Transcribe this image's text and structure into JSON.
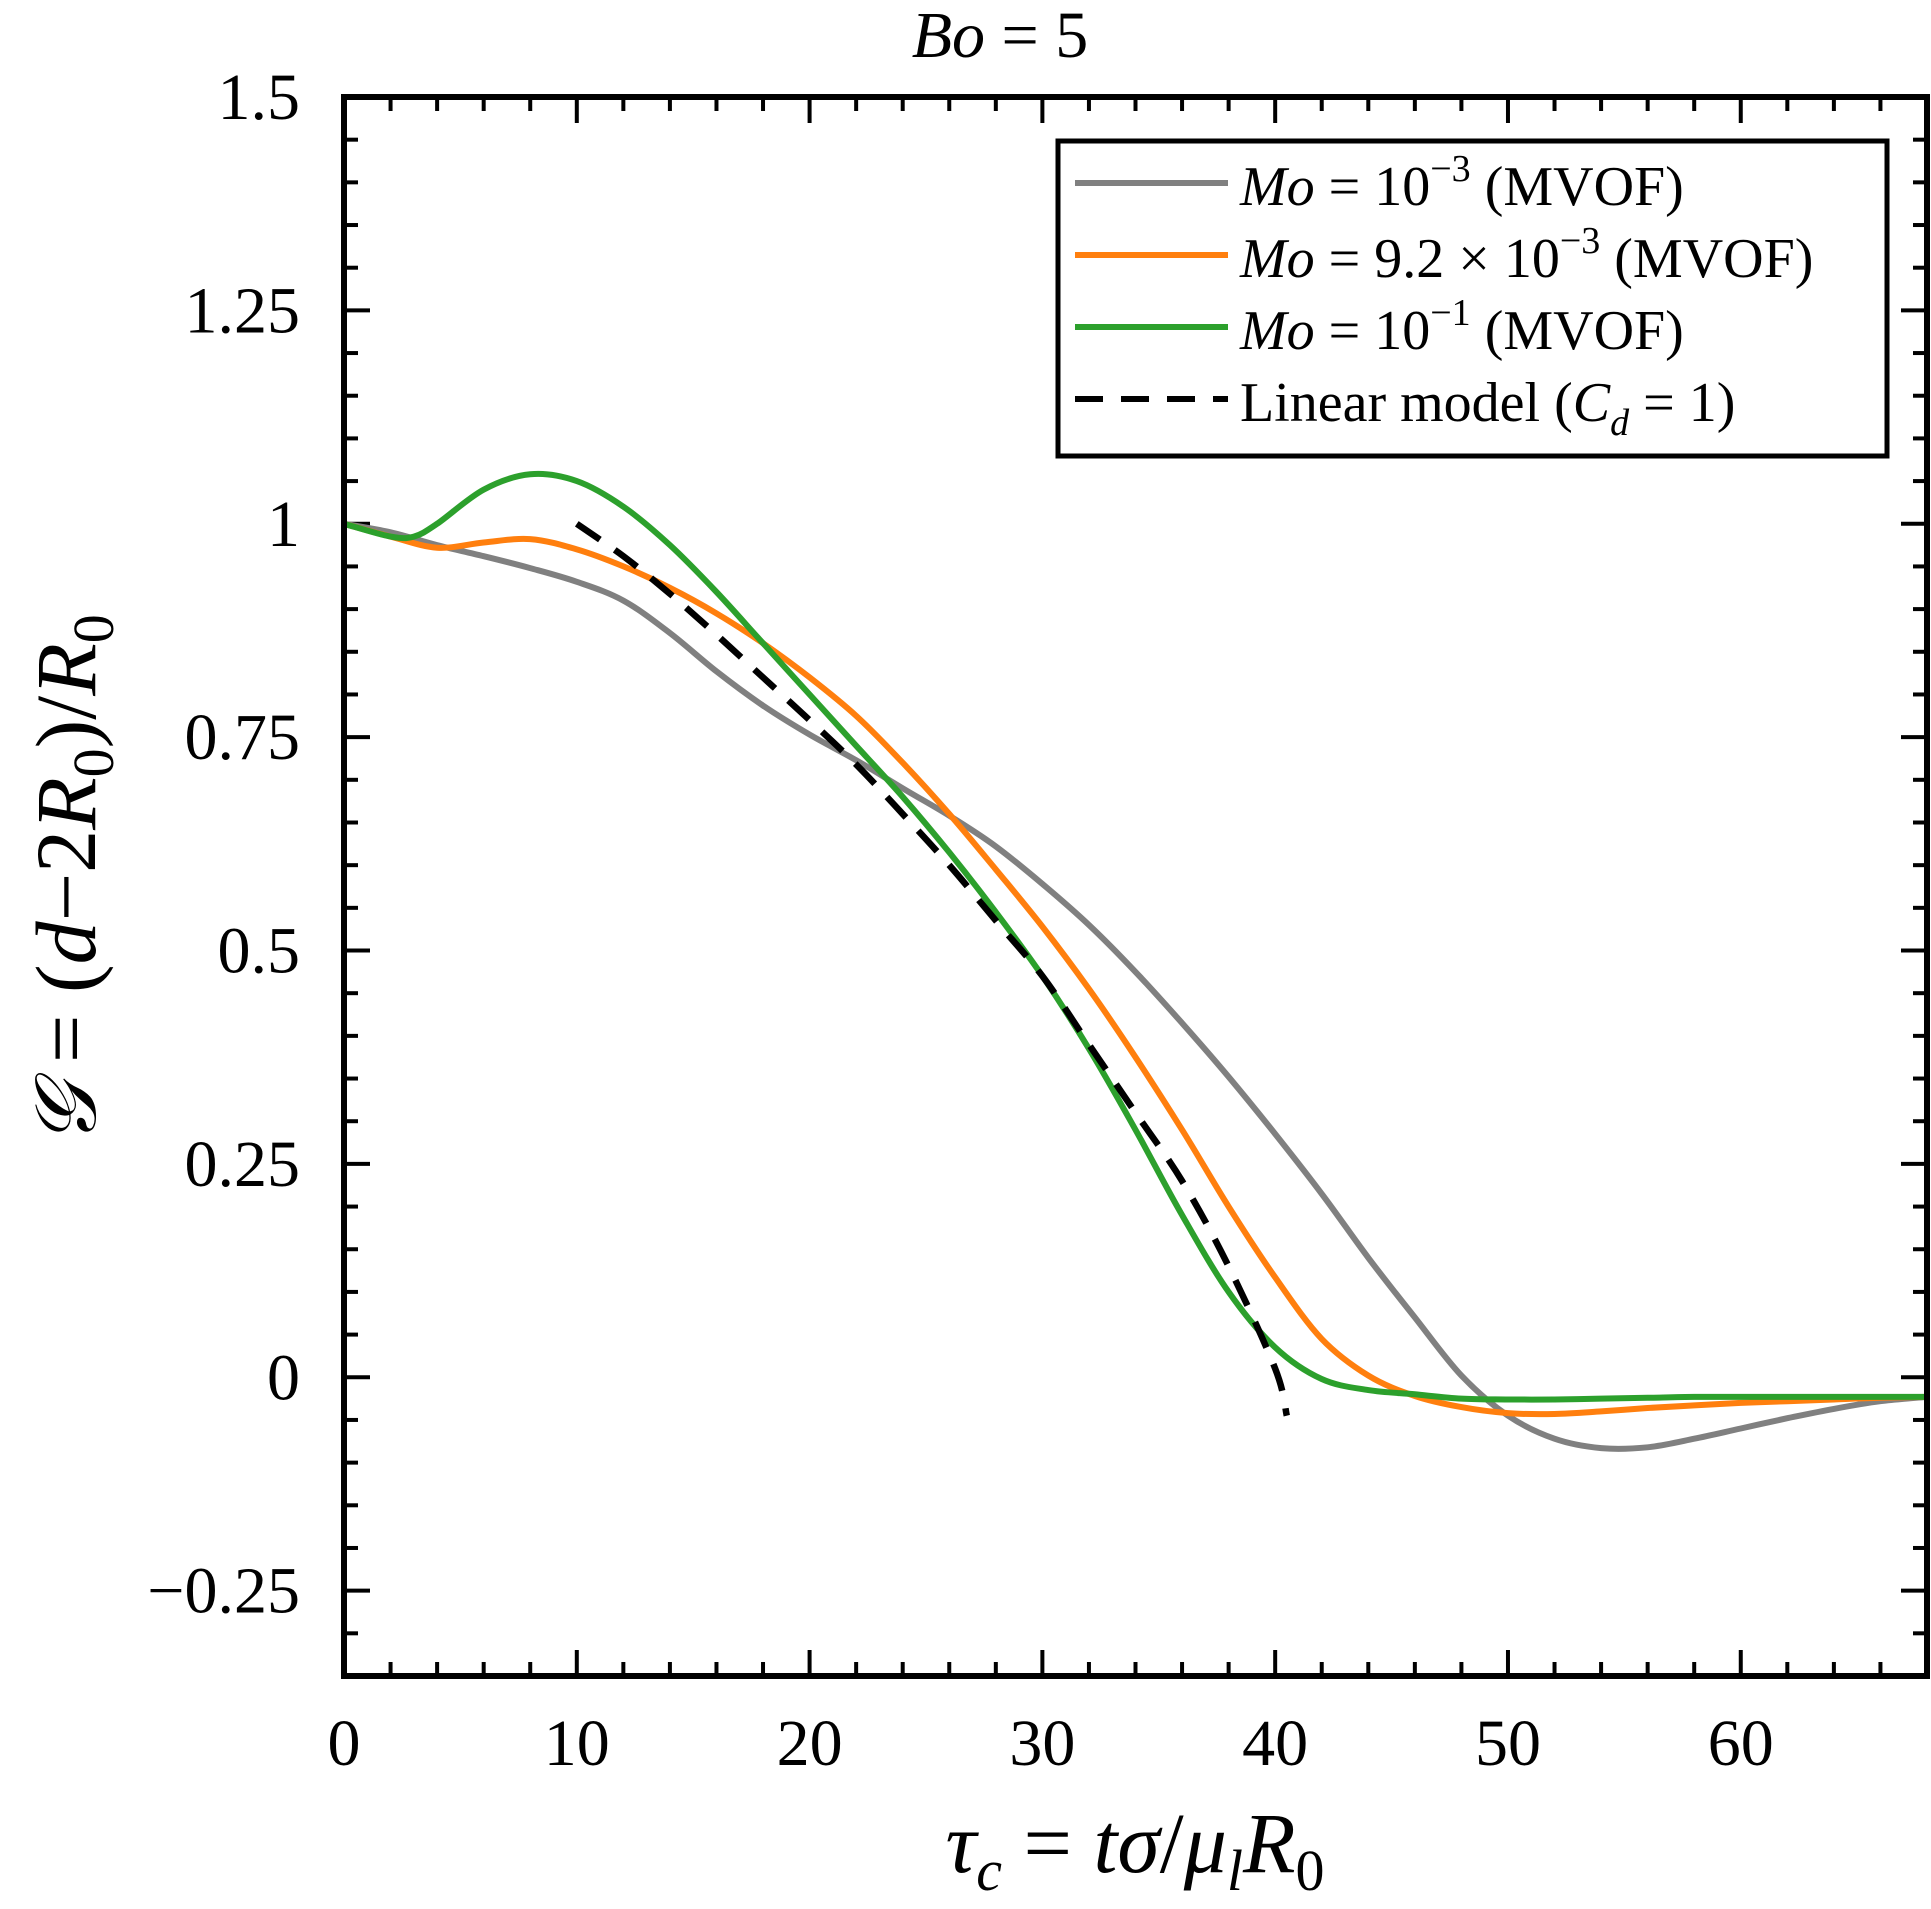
{
  "chart_data": {
    "type": "line",
    "title": "Bo = 5",
    "xlabel": "τc = tσ/μlR0",
    "ylabel": "G = (d−2R0)/R0",
    "xlim": [
      0,
      68
    ],
    "ylim": [
      -0.35,
      1.5
    ],
    "x_ticks": [
      0,
      10,
      20,
      30,
      40,
      50,
      60
    ],
    "x_tick_labels": [
      "0",
      "10",
      "20",
      "30",
      "40",
      "50",
      "60"
    ],
    "y_ticks": [
      1.5,
      1.25,
      1,
      0.75,
      0.5,
      0.25,
      0,
      -0.25
    ],
    "y_tick_labels": [
      "1.5",
      "1.25",
      "1",
      "0.75",
      "0.5",
      "0.25",
      "0",
      "−0.25"
    ],
    "grid": false,
    "legend_position": "top-right",
    "series": [
      {
        "name": "Mo = 10−3 (MVOF)",
        "color": "#808080",
        "dash": "solid",
        "x": [
          0,
          2,
          4,
          6,
          8,
          10,
          12,
          14,
          16,
          18,
          20,
          22,
          24,
          26,
          28,
          30,
          32,
          34,
          36,
          38,
          40,
          42,
          44,
          46,
          48,
          50,
          52,
          54,
          56,
          58,
          60,
          62,
          64,
          66,
          68
        ],
        "y": [
          1.0,
          0.99,
          0.975,
          0.962,
          0.948,
          0.932,
          0.91,
          0.872,
          0.827,
          0.787,
          0.753,
          0.723,
          0.69,
          0.658,
          0.622,
          0.578,
          0.53,
          0.475,
          0.415,
          0.352,
          0.285,
          0.215,
          0.14,
          0.07,
          0.002,
          -0.045,
          -0.072,
          -0.083,
          -0.082,
          -0.072,
          -0.06,
          -0.048,
          -0.037,
          -0.028,
          -0.023
        ]
      },
      {
        "name": "Mo = 9.2 × 10−3 (MVOF)",
        "color": "#ff7f0e",
        "dash": "solid",
        "x": [
          0,
          2,
          4,
          6,
          8,
          10,
          12,
          14,
          16,
          18,
          20,
          22,
          24,
          26,
          28,
          30,
          32,
          34,
          36,
          38,
          40,
          42,
          44,
          46,
          48,
          50,
          52,
          54,
          56,
          58,
          60,
          62,
          64,
          66,
          68
        ],
        "y": [
          1.0,
          0.985,
          0.972,
          0.978,
          0.982,
          0.97,
          0.95,
          0.925,
          0.895,
          0.86,
          0.82,
          0.775,
          0.72,
          0.66,
          0.595,
          0.528,
          0.455,
          0.375,
          0.29,
          0.2,
          0.117,
          0.045,
          0.002,
          -0.022,
          -0.035,
          -0.042,
          -0.043,
          -0.04,
          -0.036,
          -0.033,
          -0.03,
          -0.028,
          -0.026,
          -0.024,
          -0.023
        ]
      },
      {
        "name": "Mo = 10−1 (MVOF)",
        "color": "#2ca02c",
        "dash": "solid",
        "x": [
          0,
          2,
          3,
          4,
          6,
          8,
          10,
          12,
          14,
          16,
          18,
          20,
          22,
          24,
          26,
          28,
          30,
          32,
          34,
          36,
          38,
          40,
          42,
          44,
          46,
          48,
          50,
          52,
          54,
          56,
          58,
          60,
          62,
          64,
          66,
          68
        ],
        "y": [
          1.0,
          0.985,
          0.985,
          1.0,
          1.04,
          1.058,
          1.05,
          1.02,
          0.975,
          0.92,
          0.86,
          0.8,
          0.74,
          0.68,
          0.615,
          0.545,
          0.47,
          0.385,
          0.29,
          0.19,
          0.1,
          0.035,
          -0.002,
          -0.015,
          -0.02,
          -0.025,
          -0.026,
          -0.026,
          -0.025,
          -0.024,
          -0.023,
          -0.023,
          -0.023,
          -0.023,
          -0.023,
          -0.023
        ]
      },
      {
        "name": "Linear model (Cd = 1)",
        "color": "#000000",
        "dash": "dashed",
        "x": [
          10,
          12,
          14,
          16,
          18,
          20,
          22,
          24,
          26,
          28,
          30,
          32,
          34,
          36,
          38,
          40,
          40.5
        ],
        "y": [
          1.0,
          0.962,
          0.918,
          0.87,
          0.82,
          0.77,
          0.718,
          0.66,
          0.6,
          0.535,
          0.47,
          0.39,
          0.31,
          0.23,
          0.13,
          0.01,
          -0.045
        ]
      }
    ]
  },
  "legend": {
    "entries": [
      {
        "prefix": "Mo",
        "text1": " = 10",
        "sup": "−3",
        "text2": " (MVOF)"
      },
      {
        "prefix": "Mo",
        "text1": " = 9.2 × 10",
        "sup": "−3",
        "text2": " (MVOF)"
      },
      {
        "prefix": "Mo",
        "text1": " = 10",
        "sup": "−1",
        "text2": " (MVOF)"
      },
      {
        "text1": "Linear model (",
        "sub_var": "C",
        "sub": "d",
        "text2": " = 1)"
      }
    ]
  }
}
